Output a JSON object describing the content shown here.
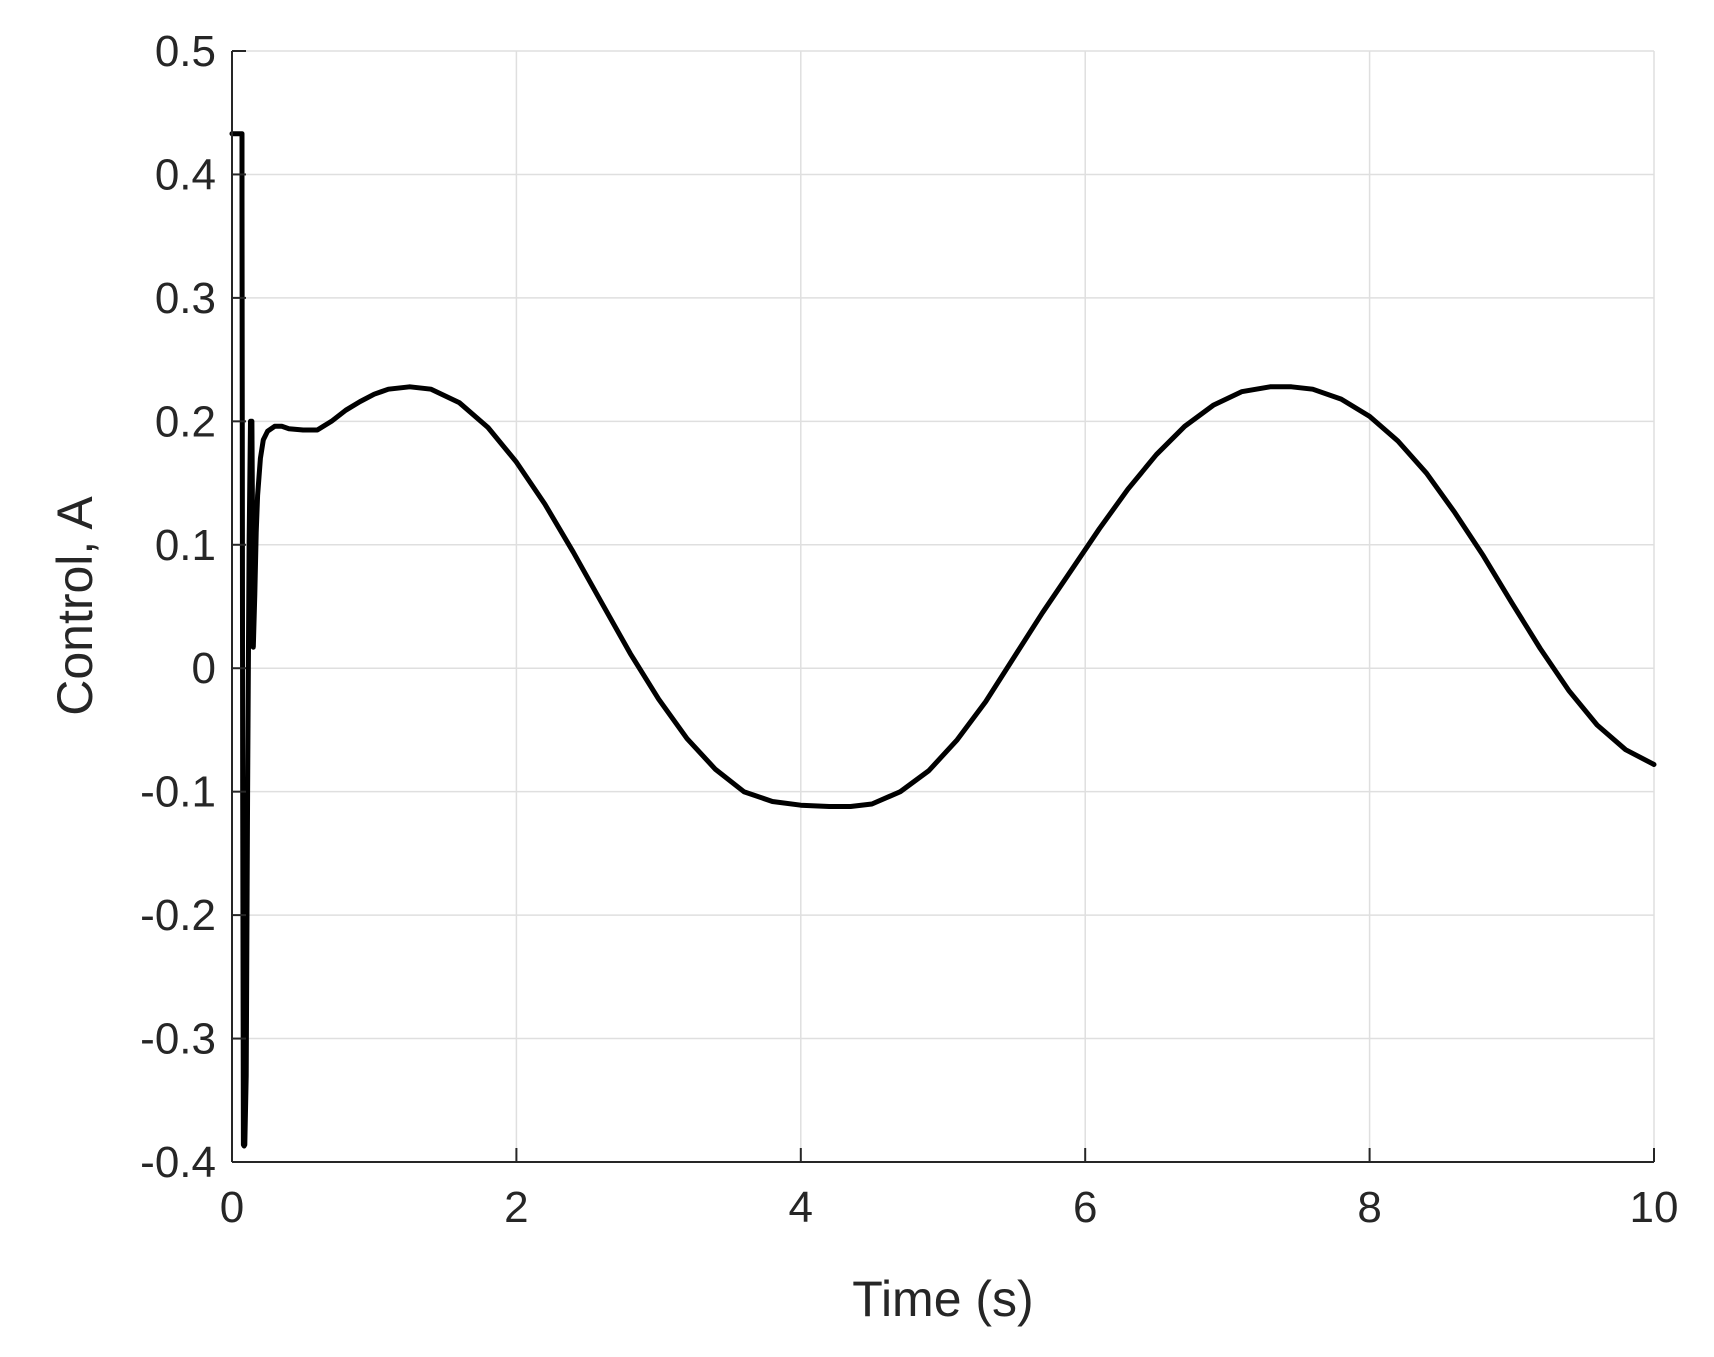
{
  "chart_data": {
    "type": "line",
    "title": "",
    "xlabel": "Time (s)",
    "ylabel": "Control, A",
    "xlim": [
      0,
      10
    ],
    "ylim": [
      -0.4,
      0.5
    ],
    "xticks": [
      0,
      2,
      4,
      6,
      8,
      10
    ],
    "xtick_labels": [
      "0",
      "2",
      "4",
      "6",
      "8",
      "10"
    ],
    "yticks": [
      -0.4,
      -0.3,
      -0.2,
      -0.1,
      0,
      0.1,
      0.2,
      0.3,
      0.4,
      0.5
    ],
    "ytick_labels": [
      "-0.4",
      "-0.3",
      "-0.2",
      "-0.1",
      "0",
      "0.1",
      "0.2",
      "0.3",
      "0.4",
      "0.5"
    ],
    "grid": true,
    "colors": {
      "line": "#000000",
      "grid": "#dfdfdf",
      "axis": "#262626"
    },
    "series": [
      {
        "x": [
          0,
          0.07,
          0.07,
          0.075,
          0.08,
          0.085,
          0.09,
          0.1,
          0.11,
          0.12,
          0.13,
          0.14,
          0.15,
          0.16,
          0.17,
          0.18,
          0.2,
          0.22,
          0.25,
          0.3,
          0.35,
          0.4,
          0.5,
          0.6,
          0.7,
          0.8,
          0.9,
          1.0,
          1.1,
          1.25,
          1.4,
          1.6,
          1.8,
          2.0,
          2.2,
          2.4,
          2.6,
          2.8,
          3.0,
          3.2,
          3.4,
          3.6,
          3.8,
          4.0,
          4.2,
          4.35,
          4.5,
          4.7,
          4.9,
          5.1,
          5.3,
          5.5,
          5.7,
          5.9,
          6.1,
          6.3,
          6.5,
          6.7,
          6.9,
          7.1,
          7.3,
          7.45,
          7.6,
          7.8,
          8.0,
          8.2,
          8.4,
          8.6,
          8.8,
          9.0,
          9.2,
          9.4,
          9.6,
          9.8,
          10.0
        ],
        "y": [
          0.433,
          0.433,
          0.38,
          -0.1,
          -0.386,
          -0.387,
          -0.386,
          -0.33,
          -0.1,
          0.1,
          0.2,
          0.2,
          0.017,
          0.06,
          0.11,
          0.14,
          0.17,
          0.185,
          0.192,
          0.196,
          0.196,
          0.194,
          0.193,
          0.193,
          0.2,
          0.209,
          0.216,
          0.222,
          0.226,
          0.228,
          0.226,
          0.215,
          0.195,
          0.167,
          0.133,
          0.094,
          0.053,
          0.012,
          -0.025,
          -0.057,
          -0.082,
          -0.1,
          -0.108,
          -0.111,
          -0.112,
          -0.112,
          -0.11,
          -0.1,
          -0.083,
          -0.058,
          -0.027,
          0.009,
          0.045,
          0.079,
          0.113,
          0.145,
          0.173,
          0.196,
          0.213,
          0.224,
          0.228,
          0.228,
          0.226,
          0.218,
          0.204,
          0.184,
          0.158,
          0.126,
          0.091,
          0.053,
          0.016,
          -0.018,
          -0.046,
          -0.066,
          -0.078
        ]
      }
    ]
  }
}
